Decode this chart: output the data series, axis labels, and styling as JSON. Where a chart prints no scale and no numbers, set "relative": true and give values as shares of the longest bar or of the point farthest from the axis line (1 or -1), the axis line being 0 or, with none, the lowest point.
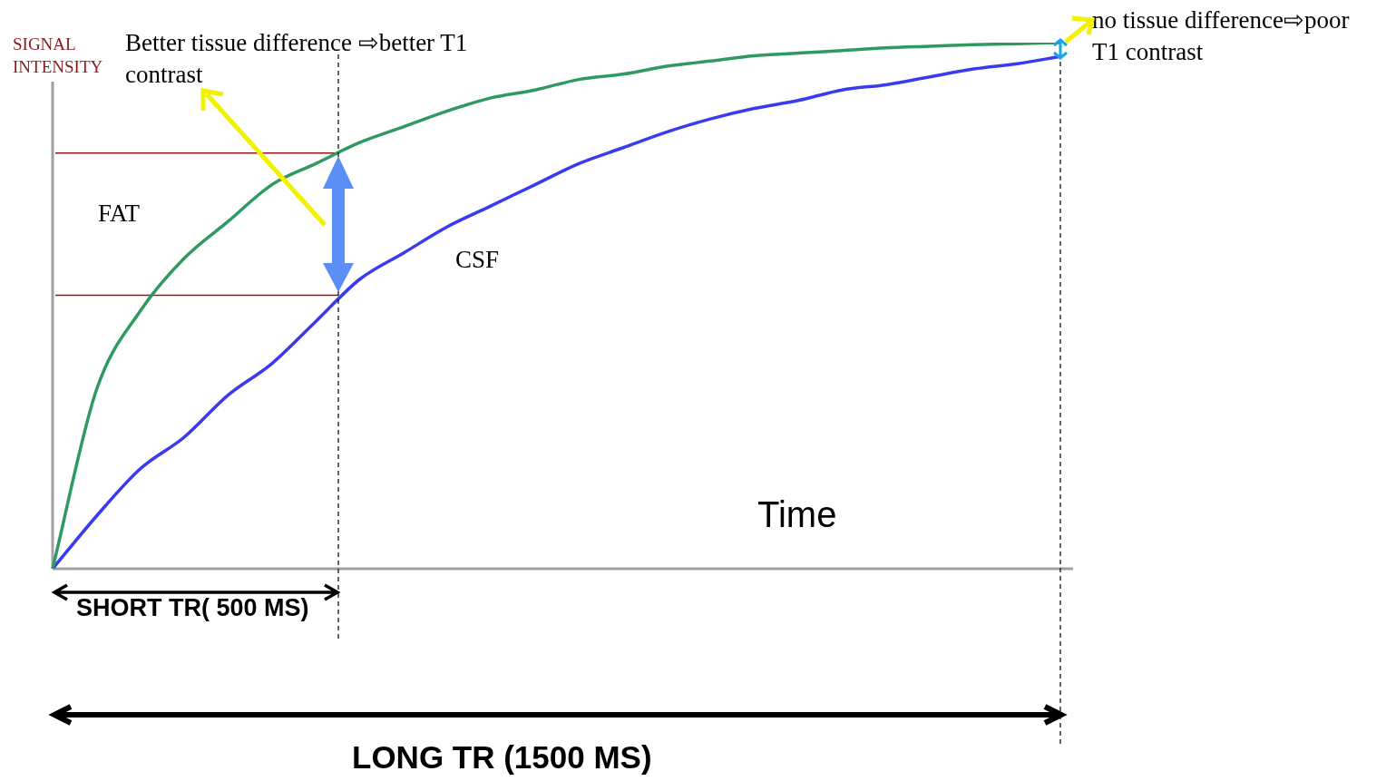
{
  "chart_data": {
    "type": "line",
    "relative": true,
    "ylabel": "SIGNAL INTENSITY",
    "xlabel": "Time",
    "legend": false,
    "marker": "none",
    "categories": [
      null,
      null,
      null,
      null,
      null,
      null,
      null,
      null,
      null,
      null,
      null,
      null,
      null,
      null,
      null,
      null,
      null,
      null,
      null,
      null,
      null,
      null,
      null,
      null
    ],
    "series": [
      {
        "name": "FAT",
        "color": "#2e9a62",
        "values": [
          0,
          0.34,
          0.49,
          0.59,
          0.66,
          0.73,
          0.77,
          0.81,
          0.84,
          0.87,
          0.895,
          0.91,
          0.93,
          0.94,
          0.955,
          0.965,
          0.975,
          0.98,
          0.985,
          0.99,
          0.993,
          0.996,
          0.998,
          1
        ]
      },
      {
        "name": "CSF",
        "color": "#3a3af0",
        "values": [
          0,
          0.1,
          0.19,
          0.25,
          0.33,
          0.39,
          0.47,
          0.55,
          0.6,
          0.65,
          0.69,
          0.73,
          0.77,
          0.8,
          0.83,
          0.855,
          0.875,
          0.89,
          0.91,
          0.92,
          0.935,
          0.95,
          0.96,
          0.974
        ]
      }
    ],
    "ref_lines": [
      {
        "axis": "y",
        "value": 0.79,
        "color": "#8b1a1a"
      },
      {
        "axis": "y",
        "value": 0.52,
        "color": "#8b1a1a"
      }
    ],
    "annotations": [
      "Better tissue difference ⇨better T1 contrast",
      "no tissue difference⇨poor T1 contrast",
      "SHORT TR( 500 MS)",
      "LONG TR (1500 MS)"
    ]
  }
}
